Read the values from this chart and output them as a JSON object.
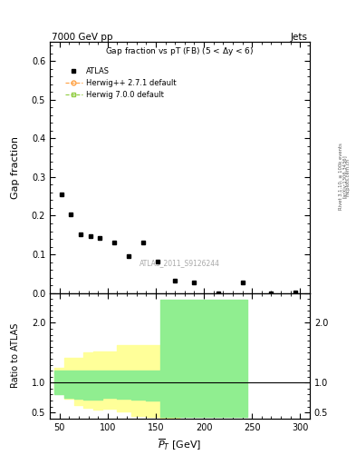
{
  "title_top_left": "7000 GeV pp",
  "title_top_right": "Jets",
  "main_title": "Gap fraction vs pT (FB) (5 < Δy < 6)",
  "watermark": "ATLAS_2011_S9126244",
  "right_label_top": "Rivet 3.1.10, ≥ 100k events",
  "right_label_mid": "[arXiv:1306.3436]",
  "right_label_bot": "mcplots.cern.ch",
  "atlas_points_x": [
    52,
    62,
    72,
    82,
    92,
    107,
    122,
    137,
    152,
    170,
    190,
    215,
    240,
    270,
    295
  ],
  "atlas_points_y": [
    0.255,
    0.203,
    0.151,
    0.148,
    0.143,
    0.131,
    0.095,
    0.131,
    0.082,
    0.033,
    0.027,
    0.0,
    0.027,
    0.0,
    0.002
  ],
  "ylim_main": [
    0.0,
    0.65
  ],
  "ylim_ratio": [
    0.4,
    2.5
  ],
  "xlim": [
    40,
    310
  ],
  "yticks_main": [
    0.0,
    0.1,
    0.2,
    0.3,
    0.4,
    0.5,
    0.6
  ],
  "yticks_ratio": [
    0.5,
    1.0,
    2.0
  ],
  "xticks": [
    50,
    100,
    150,
    200,
    250,
    300
  ],
  "yellow_bins": [
    45,
    55,
    65,
    75,
    85,
    95,
    110,
    125,
    140,
    155,
    175
  ],
  "yellow_lo": [
    0.85,
    0.73,
    0.62,
    0.58,
    0.55,
    0.56,
    0.52,
    0.45,
    0.42,
    0.4
  ],
  "yellow_hi": [
    1.25,
    1.42,
    1.42,
    1.5,
    1.52,
    1.52,
    1.62,
    1.62,
    1.62,
    1.58
  ],
  "green_small_bins": [
    45,
    55,
    65,
    75,
    85,
    95,
    110,
    125,
    140,
    155
  ],
  "green_small_lo": [
    0.8,
    0.75,
    0.73,
    0.72,
    0.72,
    0.75,
    0.73,
    0.71,
    0.7
  ],
  "green_small_hi": [
    1.2,
    1.2,
    1.2,
    1.2,
    1.2,
    1.2,
    1.2,
    1.2,
    1.2
  ],
  "green_big_x1": 155,
  "green_big_x2": 245,
  "green_big_lo": 0.42,
  "green_big_hi": 2.38,
  "color_yellow": "#FFFF99",
  "color_green": "#90EE90",
  "color_herwig_pp_line": "#FFA040",
  "color_herwig700_line": "#90CC40",
  "bg_color": "#ffffff"
}
